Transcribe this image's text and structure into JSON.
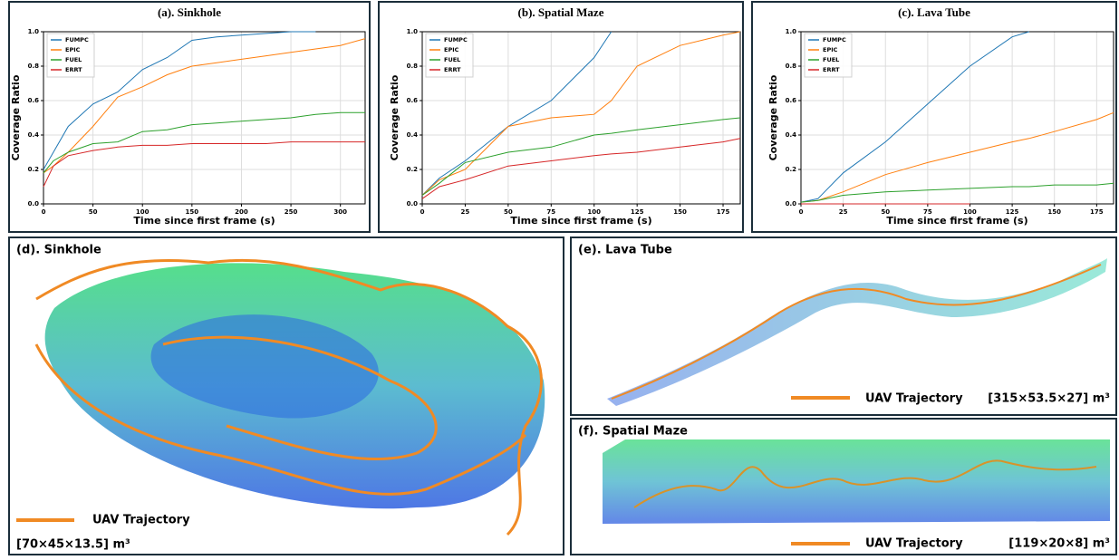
{
  "chart_data": [
    {
      "type": "line",
      "title": "(a). Sinkhole",
      "xlabel": "Time since first frame (s)",
      "ylabel": "Coverage Ratio",
      "x": [
        0,
        10,
        25,
        50,
        75,
        100,
        125,
        150,
        175,
        200,
        225,
        250,
        275,
        300,
        325
      ],
      "series": [
        {
          "name": "FUMPC",
          "color": "#1f77b4",
          "values": [
            0.2,
            0.3,
            0.45,
            0.58,
            0.65,
            0.78,
            0.85,
            0.95,
            0.97,
            0.98,
            0.99,
            1.0,
            1.0,
            null,
            null
          ]
        },
        {
          "name": "EPIC",
          "color": "#ff7f0e",
          "values": [
            0.18,
            0.22,
            0.3,
            0.45,
            0.62,
            0.68,
            0.75,
            0.8,
            0.82,
            0.84,
            0.86,
            0.88,
            0.9,
            0.92,
            0.96
          ]
        },
        {
          "name": "FUEL",
          "color": "#2ca02c",
          "values": [
            0.18,
            0.25,
            0.3,
            0.35,
            0.36,
            0.42,
            0.43,
            0.46,
            0.47,
            0.48,
            0.49,
            0.5,
            0.52,
            0.53,
            0.53
          ]
        },
        {
          "name": "ERRT",
          "color": "#d62728",
          "values": [
            0.1,
            0.22,
            0.28,
            0.31,
            0.33,
            0.34,
            0.34,
            0.35,
            0.35,
            0.35,
            0.35,
            0.36,
            0.36,
            0.36,
            0.36
          ]
        }
      ],
      "xlim": [
        0,
        325
      ],
      "xticks": [
        0,
        50,
        100,
        150,
        200,
        250,
        300
      ],
      "ylim": [
        0,
        1
      ],
      "yticks": [
        {
          "value": 0,
          "label": "0.0"
        },
        0.2,
        0.4,
        0.6,
        0.8,
        {
          "value": 1,
          "label": "1.0"
        }
      ],
      "grid": true,
      "legend": "upper-left"
    },
    {
      "type": "line",
      "title": "(b). Spatial Maze",
      "xlabel": "Time since first frame (s)",
      "ylabel": "Coverage Ratio",
      "x": [
        0,
        10,
        25,
        50,
        75,
        100,
        110,
        125,
        150,
        175,
        185
      ],
      "series": [
        {
          "name": "FUMPC",
          "color": "#1f77b4",
          "values": [
            0.05,
            0.15,
            0.25,
            0.45,
            0.6,
            0.85,
            1.0,
            null,
            null,
            null,
            null
          ]
        },
        {
          "name": "EPIC",
          "color": "#ff7f0e",
          "values": [
            0.05,
            0.14,
            0.2,
            0.45,
            0.5,
            0.52,
            0.6,
            0.8,
            0.92,
            0.98,
            1.0
          ]
        },
        {
          "name": "FUEL",
          "color": "#2ca02c",
          "values": [
            0.05,
            0.12,
            0.24,
            0.3,
            0.33,
            0.4,
            0.41,
            0.43,
            0.46,
            0.49,
            0.5
          ]
        },
        {
          "name": "ERRT",
          "color": "#d62728",
          "values": [
            0.03,
            0.1,
            0.14,
            0.22,
            0.25,
            0.28,
            0.29,
            0.3,
            0.33,
            0.36,
            0.38
          ]
        }
      ],
      "xlim": [
        0,
        185
      ],
      "xticks": [
        0,
        25,
        50,
        75,
        100,
        125,
        150,
        175
      ],
      "ylim": [
        0,
        1
      ],
      "yticks": [
        {
          "value": 0,
          "label": "0.0"
        },
        0.2,
        0.4,
        0.6,
        0.8,
        {
          "value": 1,
          "label": "1.0"
        }
      ],
      "grid": true,
      "legend": "upper-left"
    },
    {
      "type": "line",
      "title": "(c). Lava Tube",
      "xlabel": "Time since first frame (s)",
      "ylabel": "Coverage Ratio",
      "x": [
        0,
        10,
        25,
        50,
        75,
        100,
        125,
        135,
        150,
        175,
        185
      ],
      "series": [
        {
          "name": "FUMPC",
          "color": "#1f77b4",
          "values": [
            0.01,
            0.03,
            0.18,
            0.36,
            0.58,
            0.8,
            0.97,
            1.0,
            null,
            null,
            null
          ]
        },
        {
          "name": "EPIC",
          "color": "#ff7f0e",
          "values": [
            0.01,
            0.02,
            0.07,
            0.17,
            0.24,
            0.3,
            0.36,
            0.38,
            0.42,
            0.49,
            0.53
          ]
        },
        {
          "name": "FUEL",
          "color": "#2ca02c",
          "values": [
            0.01,
            0.02,
            0.05,
            0.07,
            0.08,
            0.09,
            0.1,
            0.1,
            0.11,
            0.11,
            0.12
          ]
        },
        {
          "name": "ERRT",
          "color": "#d62728",
          "values": [
            0,
            0,
            0,
            0,
            0,
            0,
            null,
            null,
            null,
            null,
            null
          ]
        }
      ],
      "xlim": [
        0,
        185
      ],
      "xticks": [
        0,
        25,
        50,
        75,
        100,
        125,
        150,
        175
      ],
      "ylim": [
        0,
        1
      ],
      "yticks": [
        {
          "value": 0,
          "label": "0.0"
        },
        0.2,
        0.4,
        0.6,
        0.8,
        {
          "value": 1,
          "label": "1.0"
        }
      ],
      "grid": true,
      "legend": "upper-left"
    }
  ],
  "image_panels": [
    {
      "label": "(d). Sinkhole",
      "legend": "UAV Trajectory",
      "size": "[70×45×13.5] m³"
    },
    {
      "label": "(e). Lava Tube",
      "legend": "UAV Trajectory",
      "size": "[315×53.5×27] m³"
    },
    {
      "label": "(f). Spatial Maze",
      "legend": "UAV Trajectory",
      "size": "[119×20×8] m³"
    }
  ]
}
